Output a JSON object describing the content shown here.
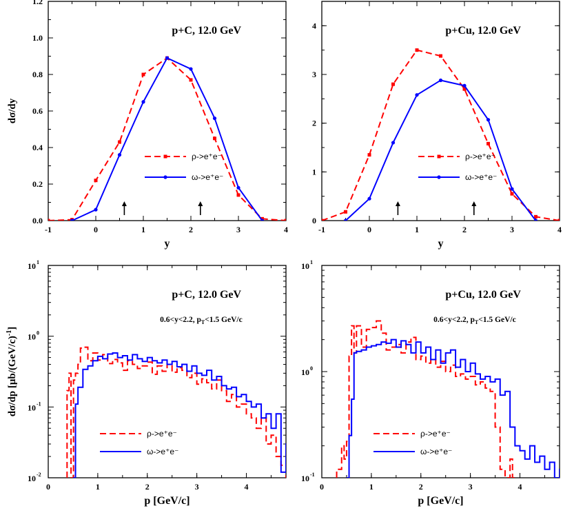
{
  "colors": {
    "rho": "#ff0000",
    "omega": "#0000ff",
    "axis": "#000000"
  },
  "chart_data": [
    {
      "type": "line",
      "panel": "top-left",
      "annotation": "p+C,  12.0 GeV",
      "xlabel": "y",
      "ylabel": "dσ/dy",
      "xlim": [
        -1,
        4
      ],
      "ylim": [
        0,
        1.2
      ],
      "xticks": [
        "-1",
        "0",
        "1",
        "2",
        "3",
        "4"
      ],
      "yticks": [
        "0.0",
        "0.2",
        "0.4",
        "0.6",
        "0.8",
        "1.0",
        "1.2"
      ],
      "arrows_at_x": [
        0.6,
        2.2
      ],
      "legend_placement": "center",
      "series": [
        {
          "name": "ρ->e⁺e⁻",
          "style": "dashed-square",
          "x": [
            -1,
            -0.5,
            0,
            0.5,
            1,
            1.5,
            2,
            2.5,
            3,
            3.5,
            4
          ],
          "y": [
            0.0,
            0.005,
            0.22,
            0.43,
            0.8,
            0.89,
            0.77,
            0.45,
            0.14,
            0.01,
            0.0
          ]
        },
        {
          "name": "ω->e⁺e⁻",
          "style": "solid-circle",
          "x": [
            -0.5,
            0,
            0.5,
            1,
            1.5,
            2,
            2.5,
            3,
            3.5
          ],
          "y": [
            0.0,
            0.06,
            0.36,
            0.65,
            0.89,
            0.83,
            0.56,
            0.18,
            0.0
          ]
        }
      ]
    },
    {
      "type": "line",
      "panel": "top-right",
      "annotation": "p+Cu,  12.0 GeV",
      "xlabel": "y",
      "ylabel": "",
      "xlim": [
        -1,
        4
      ],
      "ylim": [
        0,
        4.5
      ],
      "xticks": [
        "-1",
        "0",
        "1",
        "2",
        "3",
        "4"
      ],
      "yticks": [
        "0",
        "1",
        "2",
        "3",
        "4"
      ],
      "arrows_at_x": [
        0.6,
        2.2
      ],
      "legend_placement": "center",
      "series": [
        {
          "name": "ρ->e⁺e⁻",
          "style": "dashed-square",
          "x": [
            -1,
            -0.5,
            0,
            0.5,
            1,
            1.5,
            2,
            2.5,
            3,
            3.5,
            4
          ],
          "y": [
            0.0,
            0.18,
            1.35,
            2.8,
            3.5,
            3.38,
            2.7,
            1.58,
            0.55,
            0.08,
            0.0
          ]
        },
        {
          "name": "ω->e⁺e⁻",
          "style": "solid-circle",
          "x": [
            -0.5,
            0,
            0.5,
            1,
            1.5,
            2,
            2.5,
            3,
            3.5
          ],
          "y": [
            0.0,
            0.45,
            1.6,
            2.58,
            2.88,
            2.77,
            2.07,
            0.65,
            0.0
          ]
        }
      ]
    },
    {
      "type": "line",
      "panel": "bottom-left",
      "annotation": "p+C,  12.0 GeV",
      "cut_text": "0.6<y<2.2,  p",
      "cut_sub": "T",
      "cut_tail": "<1.5 GeV/c",
      "xlabel": "p [GeV/c]",
      "ylabel": "dσ/dp [μb/(GeV/c)",
      "ylabel_sup": "-1",
      "ylabel_tail": "]",
      "xlim": [
        0,
        4.8
      ],
      "ylim": [
        0.01,
        10
      ],
      "log_y": true,
      "xticks": [
        "0",
        "1",
        "2",
        "3",
        "4"
      ],
      "yticks": [
        "10",
        "10",
        "10",
        "10"
      ],
      "ytick_exps": [
        "-2",
        "-1",
        "0",
        "1"
      ],
      "legend_placement": "bottom-center",
      "series": [
        {
          "name": "ρ->e⁺e⁻",
          "style": "dashed-step",
          "x": [
            0.38,
            0.42,
            0.46,
            0.51,
            0.55,
            0.6,
            0.65,
            0.7,
            0.8,
            0.9,
            1.0,
            1.1,
            1.2,
            1.3,
            1.4,
            1.5,
            1.6,
            1.7,
            1.8,
            1.9,
            2.0,
            2.1,
            2.2,
            2.3,
            2.4,
            2.5,
            2.6,
            2.7,
            2.8,
            2.9,
            3.0,
            3.1,
            3.2,
            3.3,
            3.4,
            3.5,
            3.6,
            3.7,
            3.8,
            3.9,
            4.0,
            4.1,
            4.2,
            4.3,
            4.4,
            4.5,
            4.6,
            4.7,
            4.8
          ],
          "y": [
            0.17,
            0.3,
            0.01,
            0.24,
            0.3,
            0.4,
            0.68,
            0.7,
            0.45,
            0.58,
            0.46,
            0.55,
            0.41,
            0.47,
            0.42,
            0.33,
            0.45,
            0.4,
            0.35,
            0.38,
            0.43,
            0.29,
            0.38,
            0.32,
            0.4,
            0.31,
            0.36,
            0.33,
            0.26,
            0.3,
            0.21,
            0.25,
            0.22,
            0.18,
            0.24,
            0.17,
            0.12,
            0.15,
            0.1,
            0.11,
            0.08,
            0.07,
            0.05,
            0.07,
            0.03,
            0.04,
            0.02,
            0.015,
            0.01
          ]
        },
        {
          "name": "ω->e⁺e⁻",
          "style": "solid-step",
          "x": [
            0.5,
            0.55,
            0.6,
            0.7,
            0.8,
            0.9,
            1.0,
            1.1,
            1.2,
            1.3,
            1.4,
            1.5,
            1.6,
            1.7,
            1.8,
            1.9,
            2.0,
            2.1,
            2.2,
            2.3,
            2.4,
            2.5,
            2.6,
            2.7,
            2.8,
            2.9,
            3.0,
            3.1,
            3.2,
            3.3,
            3.4,
            3.5,
            3.6,
            3.7,
            3.8,
            3.9,
            4.0,
            4.1,
            4.2,
            4.3,
            4.4,
            4.5,
            4.6,
            4.7,
            4.8
          ],
          "y": [
            0.01,
            0.11,
            0.19,
            0.34,
            0.38,
            0.45,
            0.52,
            0.48,
            0.56,
            0.58,
            0.5,
            0.53,
            0.46,
            0.55,
            0.48,
            0.44,
            0.5,
            0.45,
            0.42,
            0.46,
            0.4,
            0.44,
            0.37,
            0.4,
            0.32,
            0.38,
            0.3,
            0.28,
            0.33,
            0.24,
            0.27,
            0.2,
            0.18,
            0.19,
            0.14,
            0.15,
            0.12,
            0.1,
            0.11,
            0.07,
            0.08,
            0.05,
            0.08,
            0.012,
            0.03
          ]
        }
      ]
    },
    {
      "type": "line",
      "panel": "bottom-right",
      "annotation": "p+Cu,  12.0 GeV",
      "cut_text": "0.6<y<2.2,  p",
      "cut_sub": "T",
      "cut_tail": "<1.5 GeV/c",
      "xlabel": "p [GeV/c]",
      "ylabel": "",
      "xlim": [
        0,
        4.8
      ],
      "ylim": [
        0.1,
        10
      ],
      "log_y": true,
      "xticks": [
        "0",
        "1",
        "2",
        "3",
        "4"
      ],
      "yticks": [
        "10",
        "10",
        "10"
      ],
      "ytick_exps": [
        "-1",
        "0",
        "1"
      ],
      "legend_placement": "bottom-center",
      "series": [
        {
          "name": "ρ->e⁺e⁻",
          "style": "dashed-step",
          "x": [
            0.3,
            0.4,
            0.45,
            0.5,
            0.55,
            0.6,
            0.65,
            0.7,
            0.8,
            0.9,
            1.0,
            1.1,
            1.2,
            1.3,
            1.4,
            1.5,
            1.6,
            1.7,
            1.8,
            1.9,
            2.0,
            2.1,
            2.2,
            2.3,
            2.4,
            2.5,
            2.6,
            2.7,
            2.8,
            2.9,
            3.0,
            3.1,
            3.2,
            3.3,
            3.4,
            3.5,
            3.6,
            3.7,
            3.75,
            3.8,
            3.85,
            3.9
          ],
          "y": [
            0.12,
            0.2,
            0.15,
            0.22,
            1.4,
            2.7,
            1.5,
            2.7,
            1.7,
            2.5,
            2.6,
            3.0,
            2.3,
            1.6,
            1.7,
            1.8,
            1.5,
            1.9,
            2.1,
            1.3,
            1.4,
            1.2,
            1.3,
            1.1,
            1.25,
            1.0,
            1.15,
            0.9,
            0.95,
            0.85,
            0.9,
            0.75,
            0.8,
            0.7,
            0.65,
            0.3,
            0.12,
            0.1,
            0.1,
            0.15,
            0.1,
            0.1
          ]
        },
        {
          "name": "ω->e⁺e⁻",
          "style": "solid-step",
          "x": [
            0.5,
            0.55,
            0.6,
            0.65,
            0.7,
            0.8,
            0.9,
            1.0,
            1.1,
            1.2,
            1.3,
            1.4,
            1.5,
            1.6,
            1.7,
            1.8,
            1.9,
            2.0,
            2.1,
            2.2,
            2.3,
            2.4,
            2.5,
            2.6,
            2.7,
            2.8,
            2.9,
            3.0,
            3.1,
            3.2,
            3.3,
            3.4,
            3.5,
            3.6,
            3.7,
            3.8,
            3.9,
            4.0,
            4.1,
            4.2,
            4.3,
            4.4,
            4.5,
            4.6,
            4.7,
            4.8
          ],
          "y": [
            0.1,
            0.25,
            0.55,
            1.5,
            1.55,
            1.6,
            1.7,
            1.75,
            1.8,
            1.9,
            1.85,
            2.0,
            1.7,
            1.95,
            1.8,
            1.5,
            1.9,
            1.5,
            1.7,
            1.3,
            1.6,
            1.2,
            1.5,
            1.6,
            1.1,
            1.3,
            1.0,
            1.2,
            0.95,
            0.85,
            0.9,
            0.8,
            0.85,
            0.6,
            0.65,
            0.3,
            0.2,
            0.18,
            0.15,
            0.2,
            0.14,
            0.16,
            0.12,
            0.14,
            0.1,
            0.12
          ]
        }
      ]
    }
  ]
}
